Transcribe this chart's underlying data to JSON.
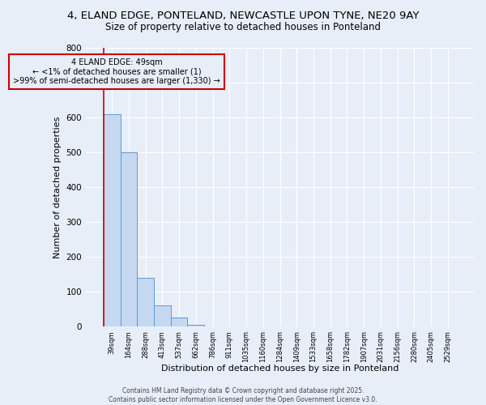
{
  "title": "4, ELAND EDGE, PONTELAND, NEWCASTLE UPON TYNE, NE20 9AY",
  "subtitle": "Size of property relative to detached houses in Ponteland",
  "xlabel": "Distribution of detached houses by size in Ponteland",
  "ylabel": "Number of detached properties",
  "bar_values": [
    610,
    500,
    140,
    60,
    27,
    5,
    1,
    0,
    0,
    0,
    0,
    0,
    0,
    0,
    0,
    0,
    0,
    0,
    0,
    0,
    0
  ],
  "bar_labels": [
    "39sqm",
    "164sqm",
    "288sqm",
    "413sqm",
    "537sqm",
    "662sqm",
    "786sqm",
    "911sqm",
    "1035sqm",
    "1160sqm",
    "1284sqm",
    "1409sqm",
    "1533sqm",
    "1658sqm",
    "1782sqm",
    "1907sqm",
    "2031sqm",
    "2156sqm",
    "2280sqm",
    "2405sqm",
    "2529sqm"
  ],
  "bar_color": "#c5d8f0",
  "bar_edge_color": "#5b9bd5",
  "background_color": "#e8eef8",
  "ylim": [
    0,
    800
  ],
  "annotation_text": "4 ELAND EDGE: 49sqm\n← <1% of detached houses are smaller (1)\n>99% of semi-detached houses are larger (1,330) →",
  "annotation_box_color": "#cc0000",
  "footer_text": "Contains HM Land Registry data © Crown copyright and database right 2025.\nContains public sector information licensed under the Open Government Licence v3.0.",
  "title_fontsize": 9.5,
  "subtitle_fontsize": 8.5,
  "ylabel_fontsize": 8,
  "xlabel_fontsize": 8,
  "yticks": [
    0,
    100,
    200,
    300,
    400,
    500,
    600,
    700,
    800
  ],
  "grid_color": "#ffffff",
  "red_line_color": "#cc0000"
}
